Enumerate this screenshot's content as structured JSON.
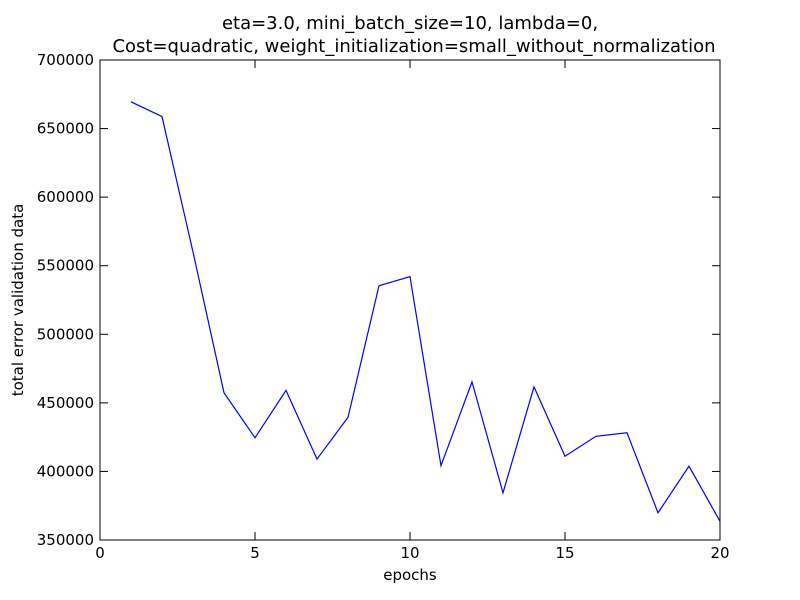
{
  "chart_data": {
    "type": "line",
    "title": [
      "eta=3.0, mini_batch_size=10, lambda=0,",
      "Cost=quadratic, weight_initialization=small_without_normalization"
    ],
    "xlabel": "epochs",
    "ylabel": "total error validation data",
    "xlim": [
      0,
      20
    ],
    "ylim": [
      350000,
      700000
    ],
    "xticks": [
      0,
      5,
      10,
      15,
      20
    ],
    "yticks": [
      350000,
      400000,
      450000,
      500000,
      550000,
      600000,
      650000,
      700000
    ],
    "grid": false,
    "colors": {
      "line": "#0000ff",
      "axes": "#000000",
      "background": "#ffffff"
    },
    "series": [
      {
        "x": [
          1,
          2,
          3,
          4,
          5,
          6,
          7,
          8,
          9,
          10,
          11,
          12,
          13,
          14,
          15,
          16,
          17,
          18,
          19,
          20
        ],
        "values": [
          669500,
          658700,
          560000,
          457400,
          424500,
          459100,
          409000,
          439400,
          535400,
          542000,
          404200,
          465300,
          384400,
          461600,
          411000,
          425600,
          428200,
          369800,
          403800,
          363600
        ]
      }
    ]
  }
}
